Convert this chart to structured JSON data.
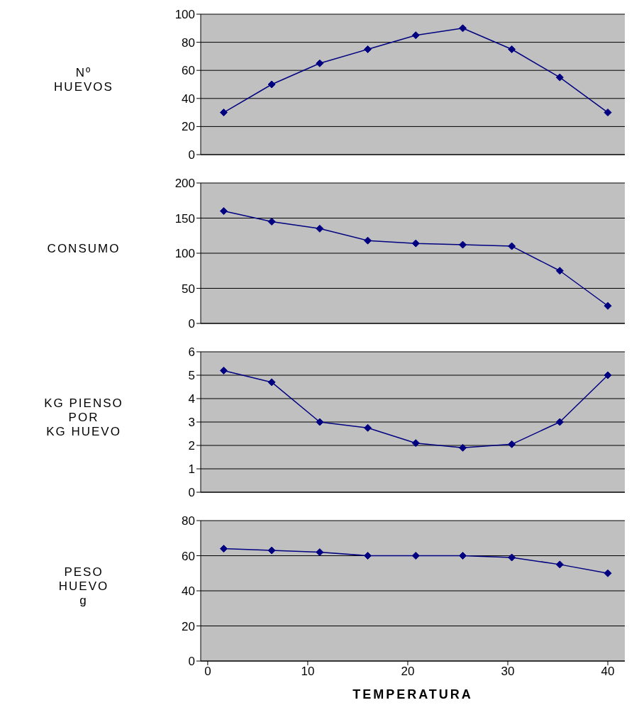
{
  "chart_data": [
    {
      "type": "line",
      "ylabel": "Nº\nHUEVOS",
      "x": [
        1.6,
        6.4,
        11.2,
        16,
        20.8,
        25.5,
        30.4,
        35.2,
        40
      ],
      "xlim": [
        -0.7,
        41.7
      ],
      "ylim": [
        0,
        100
      ],
      "yticks": [
        0,
        20,
        40,
        60,
        80,
        100
      ],
      "grid": "y",
      "tick_labels": "y",
      "marker": "diamond",
      "line_style": "solid",
      "series": [
        {
          "color": "#000080",
          "values": [
            30,
            50,
            65,
            75,
            85,
            90,
            75,
            55,
            30
          ]
        }
      ]
    },
    {
      "type": "line",
      "ylabel": "CONSUMO",
      "x": [
        1.6,
        6.4,
        11.2,
        16,
        20.8,
        25.5,
        30.4,
        35.2,
        40
      ],
      "xlim": [
        -0.7,
        41.7
      ],
      "ylim": [
        0,
        200
      ],
      "yticks": [
        0,
        50,
        100,
        150,
        200
      ],
      "grid": "y",
      "tick_labels": "y",
      "marker": "diamond",
      "line_style": "solid",
      "series": [
        {
          "color": "#000080",
          "values": [
            160,
            145,
            135,
            118,
            114,
            112,
            110,
            75,
            25
          ]
        }
      ]
    },
    {
      "type": "line",
      "ylabel": "KG PIENSO\nPOR\nKG HUEVO",
      "x": [
        1.6,
        6.4,
        11.2,
        16,
        20.8,
        25.5,
        30.4,
        35.2,
        40
      ],
      "xlim": [
        -0.7,
        41.7
      ],
      "ylim": [
        0,
        6
      ],
      "yticks": [
        0,
        1,
        2,
        3,
        4,
        5,
        6
      ],
      "grid": "y",
      "tick_labels": "y",
      "marker": "diamond",
      "line_style": "solid",
      "series": [
        {
          "color": "#000080",
          "values": [
            5.2,
            4.7,
            3.0,
            2.75,
            2.1,
            1.9,
            2.05,
            3.0,
            5.0
          ]
        }
      ]
    },
    {
      "type": "line",
      "ylabel": "PESO\nHUEVO\ng",
      "xlabel": "TEMPERATURA",
      "x": [
        1.6,
        6.4,
        11.2,
        16,
        20.8,
        25.5,
        30.4,
        35.2,
        40
      ],
      "xlim": [
        -0.7,
        41.7
      ],
      "xticks": [
        0,
        10,
        20,
        30,
        40
      ],
      "ylim": [
        0,
        80
      ],
      "yticks": [
        0,
        20,
        40,
        60,
        80
      ],
      "grid": "y",
      "marker": "diamond",
      "line_style": "solid",
      "series": [
        {
          "color": "#000080",
          "values": [
            64,
            63,
            62,
            60,
            60,
            60,
            59,
            55,
            50
          ]
        }
      ]
    }
  ]
}
